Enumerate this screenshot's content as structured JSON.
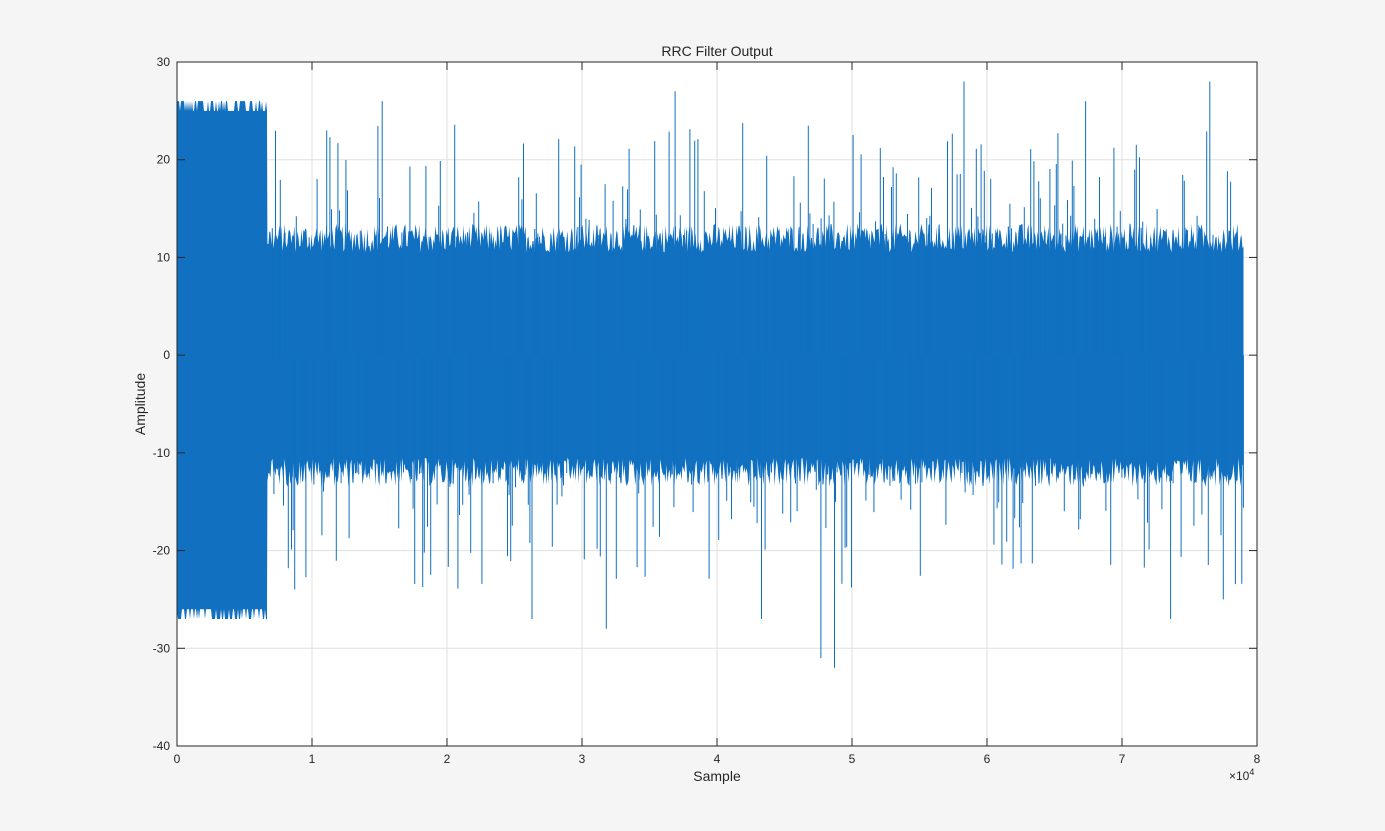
{
  "chart_data": {
    "type": "line",
    "title": "RRC Filter Output",
    "xlabel": "Sample",
    "ylabel": "Amplitude",
    "xlim": [
      0,
      80000
    ],
    "ylim": [
      -40,
      30
    ],
    "x_ticks": [
      0,
      10000,
      20000,
      30000,
      40000,
      50000,
      60000,
      70000,
      80000
    ],
    "x_tick_labels": [
      "0",
      "1",
      "2",
      "3",
      "4",
      "5",
      "6",
      "7",
      "8"
    ],
    "x_exponent_label": "×10",
    "x_exponent_power": "4",
    "y_ticks": [
      -40,
      -30,
      -20,
      -10,
      0,
      10,
      20,
      30
    ],
    "y_tick_labels": [
      "-40",
      "-30",
      "-20",
      "-10",
      "0",
      "10",
      "20",
      "30"
    ],
    "grid": true,
    "series": [
      {
        "color": "#1170c0",
        "x_range": [
          0,
          79000
        ],
        "segments": [
          {
            "x_start": 0,
            "x_end": 6700,
            "envelope_max": 26,
            "envelope_min": -27,
            "description_values": "dense bipolar plateau"
          },
          {
            "x_start": 6700,
            "x_end": 79000,
            "typical_max": 12,
            "typical_min": -12,
            "peak_max": 28,
            "peak_min": -32
          }
        ],
        "notable_peaks": [
          {
            "x": 15200,
            "y": 26
          },
          {
            "x": 36900,
            "y": 27
          },
          {
            "x": 58300,
            "y": 28
          },
          {
            "x": 67300,
            "y": 26
          },
          {
            "x": 76500,
            "y": 28
          },
          {
            "x": 26300,
            "y": -27
          },
          {
            "x": 31800,
            "y": -28
          },
          {
            "x": 43300,
            "y": -27
          },
          {
            "x": 47700,
            "y": -31
          },
          {
            "x": 48700,
            "y": -32
          },
          {
            "x": 73600,
            "y": -27
          },
          {
            "x": 77500,
            "y": -25
          }
        ]
      }
    ]
  }
}
